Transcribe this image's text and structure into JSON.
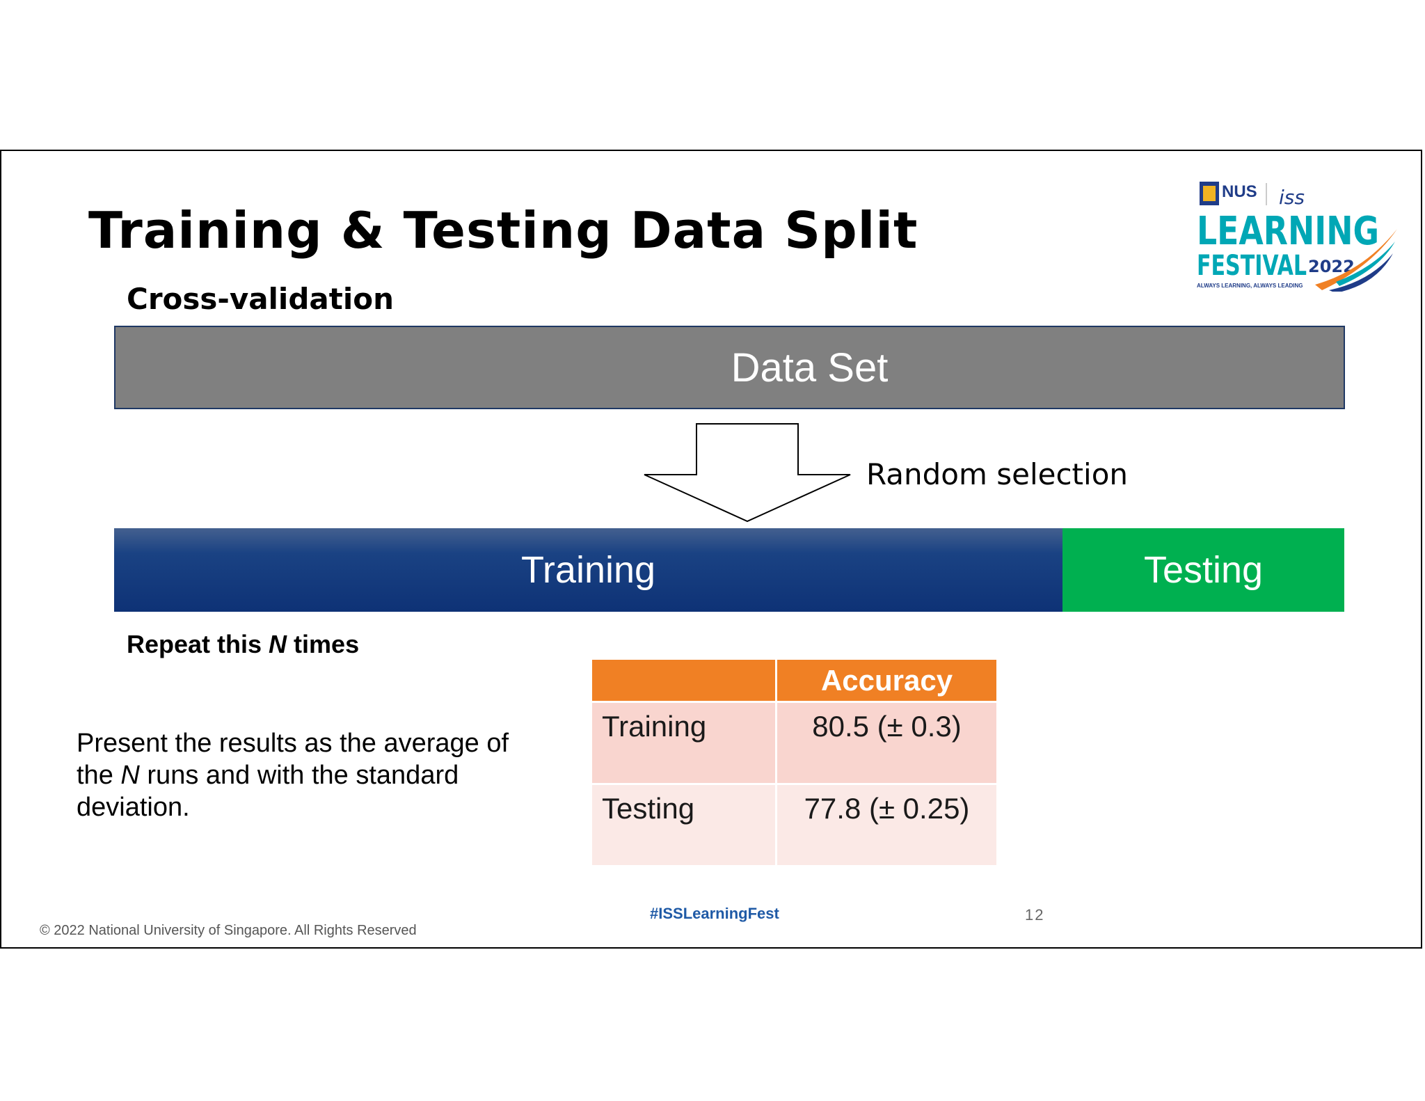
{
  "slide": {
    "title": "Training & Testing Data Split",
    "subtitle": "Cross-validation",
    "dataset_label": "Data Set",
    "random_label": "Random selection",
    "training_bar": "Training",
    "testing_bar": "Testing",
    "repeat_prefix": "Repeat this ",
    "repeat_n": "N",
    "repeat_suffix": " times",
    "present_1": "Present the results as the average of the ",
    "present_n": "N",
    "present_2": " runs and with the standard deviation."
  },
  "table": {
    "header": "Accuracy",
    "rows": [
      {
        "label": "Training",
        "value": "80.5 (± 0.3)"
      },
      {
        "label": "Testing",
        "value": "77.8 (± 0.25)"
      }
    ]
  },
  "logo": {
    "nus": "NUS",
    "iss": "iss",
    "line1": "LEARNING",
    "line2": "FESTIVAL",
    "year": "2022",
    "tagline": "ALWAYS LEARNING, ALWAYS LEADING"
  },
  "footer": {
    "copyright": "© 2022 National University of Singapore. All Rights Reserved",
    "hashtag": "#ISSLearningFest",
    "page": "12"
  },
  "colors": {
    "dataset": "#808080",
    "training": "#0e3276",
    "testing": "#00b050",
    "table_header": "#f08024",
    "logo_teal": "#00a7b5"
  }
}
